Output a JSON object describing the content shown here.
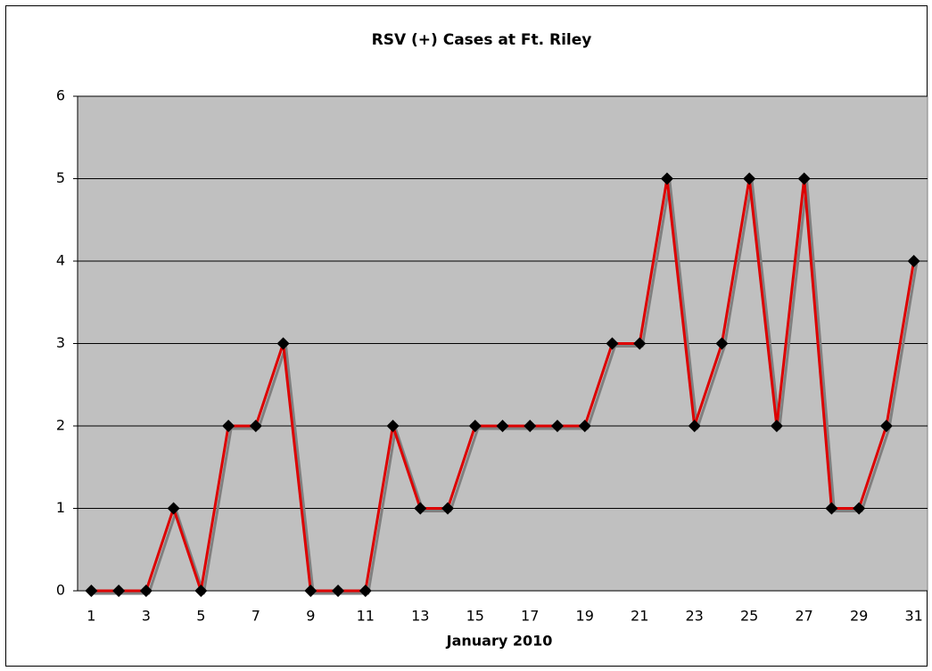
{
  "chart_data": {
    "type": "line",
    "title": "RSV (+) Cases at Ft. Riley",
    "x_label": "January 2010",
    "categories": [
      "1",
      null,
      "3",
      null,
      "5",
      null,
      "7",
      null,
      "9",
      null,
      "11",
      null,
      "13",
      null,
      "15",
      null,
      "17",
      null,
      "19",
      null,
      "21",
      null,
      "23",
      null,
      "25",
      null,
      "27",
      null,
      "29",
      null,
      "31"
    ],
    "series": [
      {
        "name": "RSV (+) Cases",
        "color": "#dd0000",
        "marker_color": "#000000",
        "values": [
          0,
          0,
          0,
          1,
          0,
          2,
          2,
          3,
          0,
          0,
          0,
          2,
          1,
          1,
          2,
          2,
          2,
          2,
          2,
          3,
          3,
          5,
          2,
          3,
          5,
          2,
          5,
          1,
          1,
          2,
          4
        ]
      }
    ],
    "ylim": [
      0,
      6
    ],
    "yticks": [
      0,
      1,
      2,
      3,
      4,
      5,
      6
    ],
    "grid": true,
    "plot_background": "#c0c0c0"
  }
}
